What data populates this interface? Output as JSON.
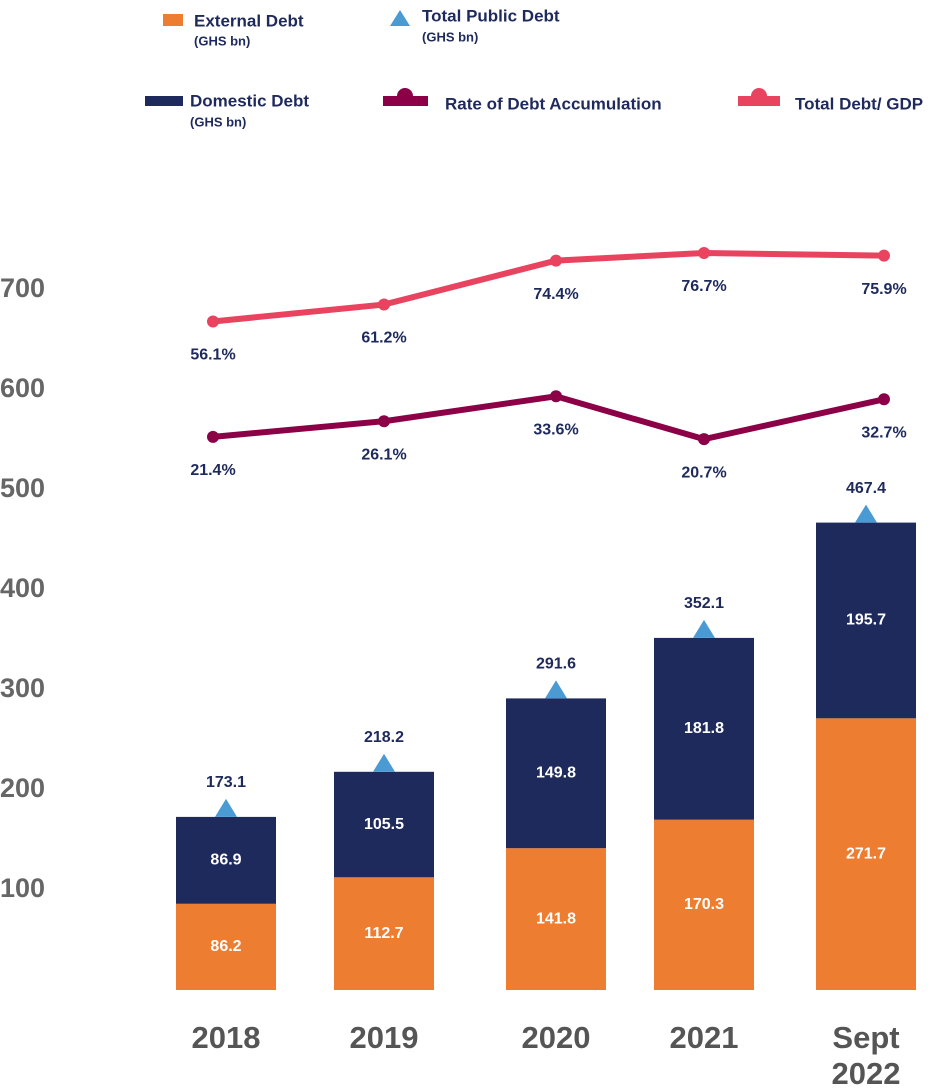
{
  "chart_data": {
    "type": "bar",
    "categories": [
      "2018",
      "2019",
      "2020",
      "2021",
      "Sept 2022"
    ],
    "ylim": [
      0,
      750
    ],
    "yticks": [
      100,
      200,
      300,
      400,
      500,
      600,
      700
    ],
    "y2lim": [
      0,
      80
    ],
    "series": [
      {
        "name": "External Debt",
        "unit": "(GHS bn)",
        "type": "bar",
        "color": "#ed7d31",
        "values": [
          86.2,
          112.7,
          141.8,
          170.3,
          271.7
        ]
      },
      {
        "name": "Domestic Debt",
        "unit": "(GHS bn)",
        "type": "bar",
        "color": "#1f2a5c",
        "values": [
          86.9,
          105.5,
          149.8,
          181.8,
          195.7
        ]
      },
      {
        "name": "Total Public Debt",
        "unit": "(GHS bn)",
        "type": "marker",
        "color": "#4a9ad4",
        "values": [
          173.1,
          218.2,
          291.6,
          352.1,
          467.4
        ]
      },
      {
        "name": "Rate of Debt Accumulation",
        "type": "line",
        "axis": "y2",
        "color": "#8b0046",
        "values": [
          21.4,
          26.1,
          33.6,
          20.7,
          32.7
        ],
        "value_labels": [
          "21.4%",
          "26.1%",
          "33.6%",
          "20.7%",
          "32.7%"
        ]
      },
      {
        "name": "Total Debt/ GDP",
        "type": "line",
        "axis": "y2",
        "color": "#e8435f",
        "values": [
          56.1,
          61.2,
          74.4,
          76.7,
          75.9
        ],
        "value_labels": [
          "56.1%",
          "61.2%",
          "74.4%",
          "76.7%",
          "75.9%"
        ]
      }
    ]
  }
}
